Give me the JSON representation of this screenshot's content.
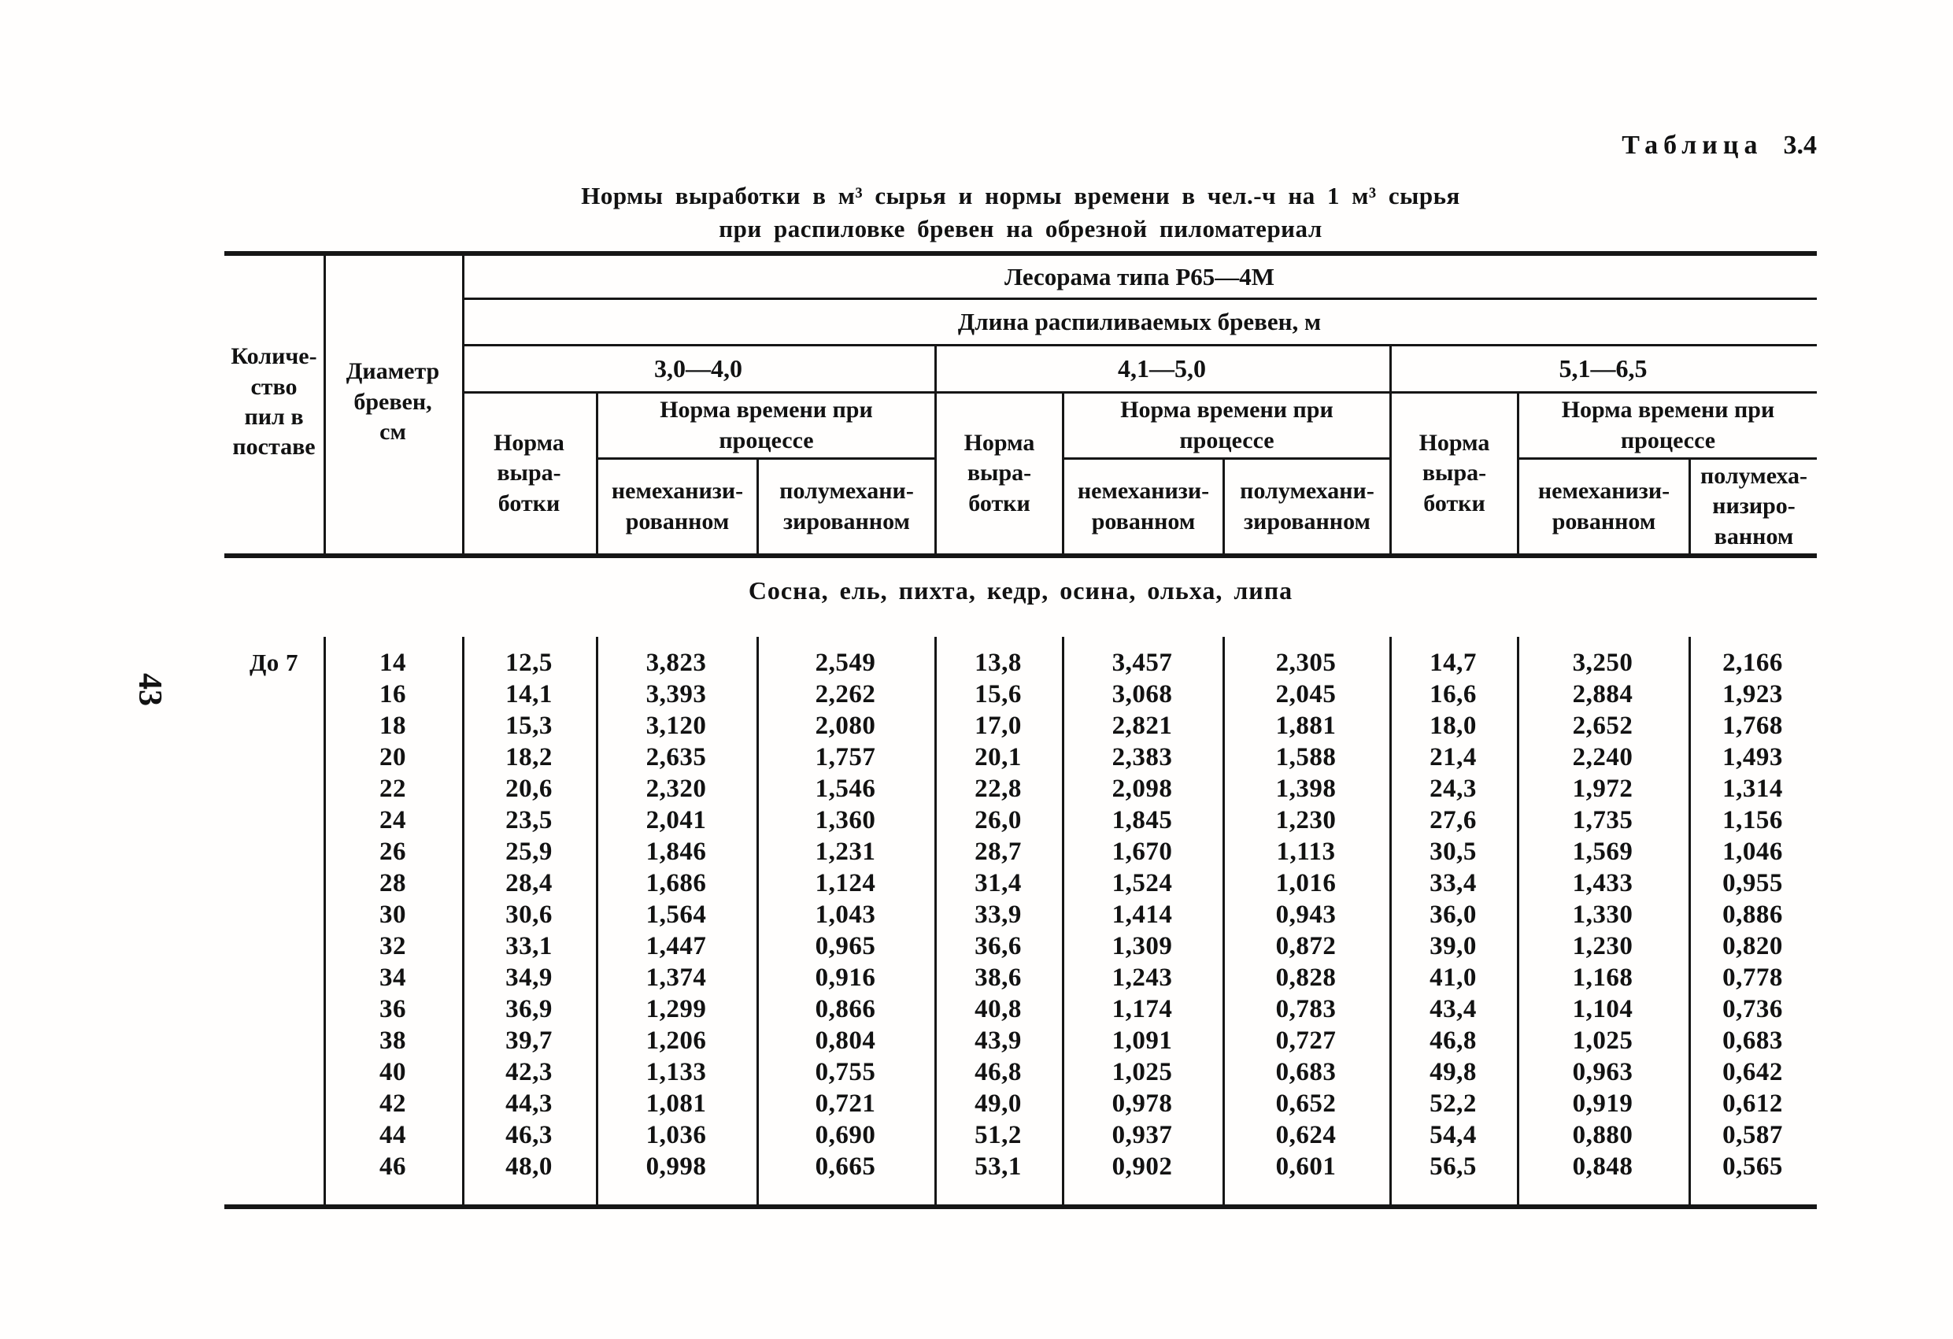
{
  "page": {
    "number": "43",
    "caption_word": "Таблица",
    "caption_number": "3.4",
    "title_line1": "Нормы выработки в м³ сырья и нормы времени в чел.-ч на 1 м³ сырья",
    "title_line2": "при распиловке бревен на обрезной пиломатериал"
  },
  "table": {
    "col_saws": "Количе-\nство\nпил в\nпоставе",
    "col_diameter": "Диаметр\nбревен,\nсм",
    "machine_header": "Лесорама типа Р65—4М",
    "length_header": "Длина распиливаемых бревен, м",
    "ranges": [
      "3,0—4,0",
      "4,1—5,0",
      "5,1—6,5"
    ],
    "norm_output": "Норма\nвыра-\nботки",
    "norm_time": "Норма времени при\nпроцессе",
    "proc_nonmech": "немеханизи-\nрованном",
    "proc_semimech": "полумехани-\nзированном",
    "proc_semimech_narrow": "полумеха-\nнизиро-\nванном",
    "species_row": "Сосна, ель, пихта, кедр, осина, ольха, липа",
    "saws_value": "До 7",
    "rows": [
      {
        "d": "14",
        "v": [
          "12,5",
          "3,823",
          "2,549",
          "13,8",
          "3,457",
          "2,305",
          "14,7",
          "3,250",
          "2,166"
        ]
      },
      {
        "d": "16",
        "v": [
          "14,1",
          "3,393",
          "2,262",
          "15,6",
          "3,068",
          "2,045",
          "16,6",
          "2,884",
          "1,923"
        ]
      },
      {
        "d": "18",
        "v": [
          "15,3",
          "3,120",
          "2,080",
          "17,0",
          "2,821",
          "1,881",
          "18,0",
          "2,652",
          "1,768"
        ]
      },
      {
        "d": "20",
        "v": [
          "18,2",
          "2,635",
          "1,757",
          "20,1",
          "2,383",
          "1,588",
          "21,4",
          "2,240",
          "1,493"
        ]
      },
      {
        "d": "22",
        "v": [
          "20,6",
          "2,320",
          "1,546",
          "22,8",
          "2,098",
          "1,398",
          "24,3",
          "1,972",
          "1,314"
        ]
      },
      {
        "d": "24",
        "v": [
          "23,5",
          "2,041",
          "1,360",
          "26,0",
          "1,845",
          "1,230",
          "27,6",
          "1,735",
          "1,156"
        ]
      },
      {
        "d": "26",
        "v": [
          "25,9",
          "1,846",
          "1,231",
          "28,7",
          "1,670",
          "1,113",
          "30,5",
          "1,569",
          "1,046"
        ]
      },
      {
        "d": "28",
        "v": [
          "28,4",
          "1,686",
          "1,124",
          "31,4",
          "1,524",
          "1,016",
          "33,4",
          "1,433",
          "0,955"
        ]
      },
      {
        "d": "30",
        "v": [
          "30,6",
          "1,564",
          "1,043",
          "33,9",
          "1,414",
          "0,943",
          "36,0",
          "1,330",
          "0,886"
        ]
      },
      {
        "d": "32",
        "v": [
          "33,1",
          "1,447",
          "0,965",
          "36,6",
          "1,309",
          "0,872",
          "39,0",
          "1,230",
          "0,820"
        ]
      },
      {
        "d": "34",
        "v": [
          "34,9",
          "1,374",
          "0,916",
          "38,6",
          "1,243",
          "0,828",
          "41,0",
          "1,168",
          "0,778"
        ]
      },
      {
        "d": "36",
        "v": [
          "36,9",
          "1,299",
          "0,866",
          "40,8",
          "1,174",
          "0,783",
          "43,4",
          "1,104",
          "0,736"
        ]
      },
      {
        "d": "38",
        "v": [
          "39,7",
          "1,206",
          "0,804",
          "43,9",
          "1,091",
          "0,727",
          "46,8",
          "1,025",
          "0,683"
        ]
      },
      {
        "d": "40",
        "v": [
          "42,3",
          "1,133",
          "0,755",
          "46,8",
          "1,025",
          "0,683",
          "49,8",
          "0,963",
          "0,642"
        ]
      },
      {
        "d": "42",
        "v": [
          "44,3",
          "1,081",
          "0,721",
          "49,0",
          "0,978",
          "0,652",
          "52,2",
          "0,919",
          "0,612"
        ]
      },
      {
        "d": "44",
        "v": [
          "46,3",
          "1,036",
          "0,690",
          "51,2",
          "0,937",
          "0,624",
          "54,4",
          "0,880",
          "0,587"
        ]
      },
      {
        "d": "46",
        "v": [
          "48,0",
          "0,998",
          "0,665",
          "53,1",
          "0,902",
          "0,601",
          "56,5",
          "0,848",
          "0,565"
        ]
      }
    ]
  }
}
